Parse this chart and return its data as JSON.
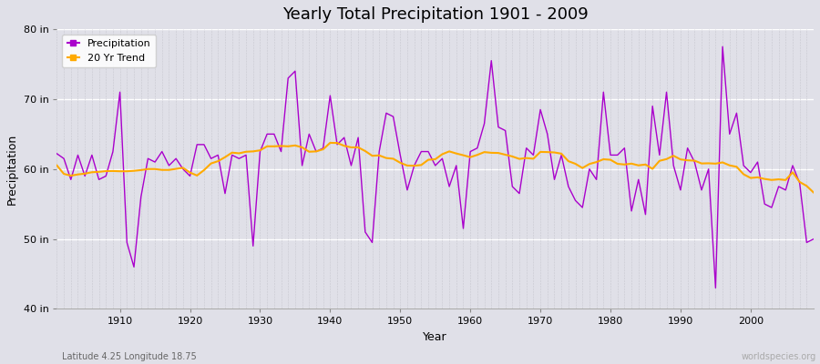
{
  "title": "Yearly Total Precipitation 1901 - 2009",
  "xlabel": "Year",
  "ylabel": "Precipitation",
  "subtitle": "Latitude 4.25 Longitude 18.75",
  "watermark": "worldspecies.org",
  "ylim": [
    40,
    80
  ],
  "yticks": [
    40,
    50,
    60,
    70,
    80
  ],
  "ytick_labels": [
    "40 in",
    "50 in",
    "60 in",
    "70 in",
    "80 in"
  ],
  "bg_color": "#e0e0e8",
  "precip_color": "#aa00cc",
  "trend_color": "#ffaa00",
  "years": [
    1901,
    1902,
    1903,
    1904,
    1905,
    1906,
    1907,
    1908,
    1909,
    1910,
    1911,
    1912,
    1913,
    1914,
    1915,
    1916,
    1917,
    1918,
    1919,
    1920,
    1921,
    1922,
    1923,
    1924,
    1925,
    1926,
    1927,
    1928,
    1929,
    1930,
    1931,
    1932,
    1933,
    1934,
    1935,
    1936,
    1937,
    1938,
    1939,
    1940,
    1941,
    1942,
    1943,
    1944,
    1945,
    1946,
    1947,
    1948,
    1949,
    1950,
    1951,
    1952,
    1953,
    1954,
    1955,
    1956,
    1957,
    1958,
    1959,
    1960,
    1961,
    1962,
    1963,
    1964,
    1965,
    1966,
    1967,
    1968,
    1969,
    1970,
    1971,
    1972,
    1973,
    1974,
    1975,
    1976,
    1977,
    1978,
    1979,
    1980,
    1981,
    1982,
    1983,
    1984,
    1985,
    1986,
    1987,
    1988,
    1989,
    1990,
    1991,
    1992,
    1993,
    1994,
    1995,
    1996,
    1997,
    1998,
    1999,
    2000,
    2001,
    2002,
    2003,
    2004,
    2005,
    2006,
    2007,
    2008,
    2009
  ],
  "precip": [
    62.2,
    61.5,
    58.5,
    62.0,
    59.0,
    62.0,
    58.5,
    59.0,
    62.5,
    71.0,
    49.5,
    46.0,
    56.0,
    61.5,
    61.0,
    62.5,
    60.5,
    61.5,
    60.0,
    59.0,
    63.5,
    63.5,
    61.5,
    62.0,
    56.5,
    62.0,
    61.5,
    62.0,
    49.0,
    62.5,
    65.0,
    65.0,
    62.5,
    73.0,
    74.0,
    60.5,
    65.0,
    62.5,
    63.0,
    70.5,
    63.5,
    64.5,
    60.5,
    64.5,
    51.0,
    49.5,
    62.5,
    68.0,
    67.5,
    62.0,
    57.0,
    60.5,
    62.5,
    62.5,
    60.5,
    61.5,
    57.5,
    60.5,
    51.5,
    62.5,
    63.0,
    66.5,
    75.5,
    66.0,
    65.5,
    57.5,
    56.5,
    63.0,
    62.0,
    68.5,
    65.0,
    58.5,
    62.0,
    57.5,
    55.5,
    54.5,
    60.0,
    58.5,
    71.0,
    62.0,
    62.0,
    63.0,
    54.0,
    58.5,
    53.5,
    69.0,
    62.0,
    71.0,
    60.5,
    57.0,
    63.0,
    61.0,
    57.0,
    60.0,
    43.0,
    77.5,
    65.0,
    68.0,
    60.5,
    59.5,
    61.0,
    55.0,
    54.5,
    57.5,
    57.0,
    60.5,
    58.0,
    49.5,
    50.0
  ],
  "xticks": [
    1910,
    1920,
    1930,
    1940,
    1950,
    1960,
    1970,
    1980,
    1990,
    2000
  ],
  "xlim": [
    1901,
    2009
  ]
}
